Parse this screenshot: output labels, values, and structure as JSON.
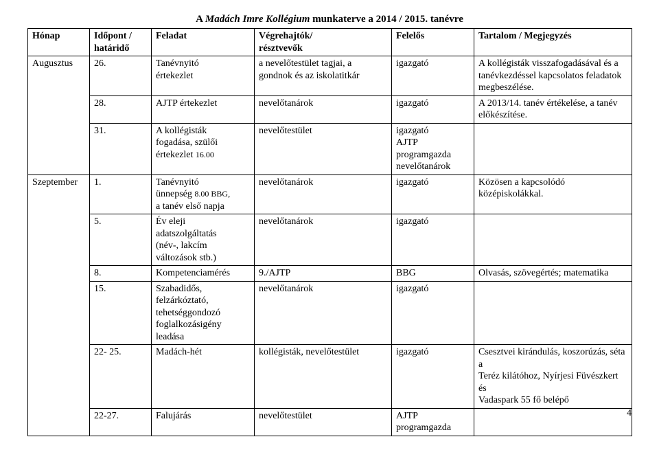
{
  "title_prefix": "A ",
  "title_italic": "Madách Imre Kollégium",
  "title_suffix": " munkaterve a 2014 / 2015. tanévre",
  "page_number": "4",
  "headers": {
    "h1": "Hónap",
    "h2a": "Időpont /",
    "h2b": "határidő",
    "h3": "Feladat",
    "h4a": "Végrehajtók/",
    "h4b": "résztvevők",
    "h5": "Felelős",
    "h6": "Tartalom / Megjegyzés"
  },
  "months": {
    "m1": "Augusztus",
    "m2": "Szeptember"
  },
  "rows": {
    "r1": {
      "date": "26.",
      "task_a": "Tanévnyitó",
      "task_b": "értekezlet",
      "exec_a": "a nevelőtestület tagjai, a",
      "exec_b": "gondnok és az iskolatitkár",
      "resp": "igazgató",
      "note_a": "A kollégisták visszafogadásával és a",
      "note_b": "tanévkezdéssel kapcsolatos feladatok",
      "note_c": "megbeszélése."
    },
    "r2": {
      "date": "28.",
      "task": "AJTP értekezlet",
      "exec": "nevelőtanárok",
      "resp": "igazgató",
      "note_a": "A 2013/14. tanév értékelése, a tanév",
      "note_b": "előkészítése."
    },
    "r3": {
      "date": "31.",
      "task_a": "A kollégisták",
      "task_b": "fogadása, szülői",
      "task_c": "értekezlet ",
      "task_c_small": "16.00",
      "exec": "nevelőtestület",
      "resp_a": "igazgató",
      "resp_b": "AJTP",
      "resp_c": "programgazda",
      "resp_d": "nevelőtanárok"
    },
    "r4": {
      "date": "1.",
      "task_a": "Tanévnyitó",
      "task_b": "ünnepség ",
      "task_b_small": "8.00 BBG,",
      "task_c": "a tanév első napja",
      "exec": "nevelőtanárok",
      "resp": "igazgató",
      "note": "Közösen a kapcsolódó középiskolákkal."
    },
    "r5": {
      "date": "5.",
      "task_a": "Év eleji",
      "task_b": "adatszolgáltatás",
      "task_c": "(név-, lakcím",
      "task_d": "változások stb.)",
      "exec": "nevelőtanárok",
      "resp": "igazgató"
    },
    "r6": {
      "date": "8.",
      "task": "Kompetenciamérés",
      "exec": "9./AJTP",
      "resp": "BBG",
      "note": "Olvasás, szövegértés; matematika"
    },
    "r7": {
      "date": "15.",
      "task_a": "Szabadidős,",
      "task_b": "felzárkóztató,",
      "task_c": "tehetséggondozó",
      "task_d": "foglalkozásigény",
      "task_e": "leadása",
      "exec": "nevelőtanárok",
      "resp": "igazgató"
    },
    "r8": {
      "date": "22- 25.",
      "task": "Madách-hét",
      "exec": "kollégisták, nevelőtestület",
      "resp": "igazgató",
      "note_a": "Csesztvei kirándulás, koszorúzás, séta a",
      "note_b": "Teréz kilátóhoz, Nyírjesi Füvészkert és",
      "note_c": "Vadaspark 55 fő belépő"
    },
    "r9": {
      "date": "22-27.",
      "task": "Falujárás",
      "exec": "nevelőtestület",
      "resp_a": "AJTP",
      "resp_b": "programgazda"
    }
  }
}
